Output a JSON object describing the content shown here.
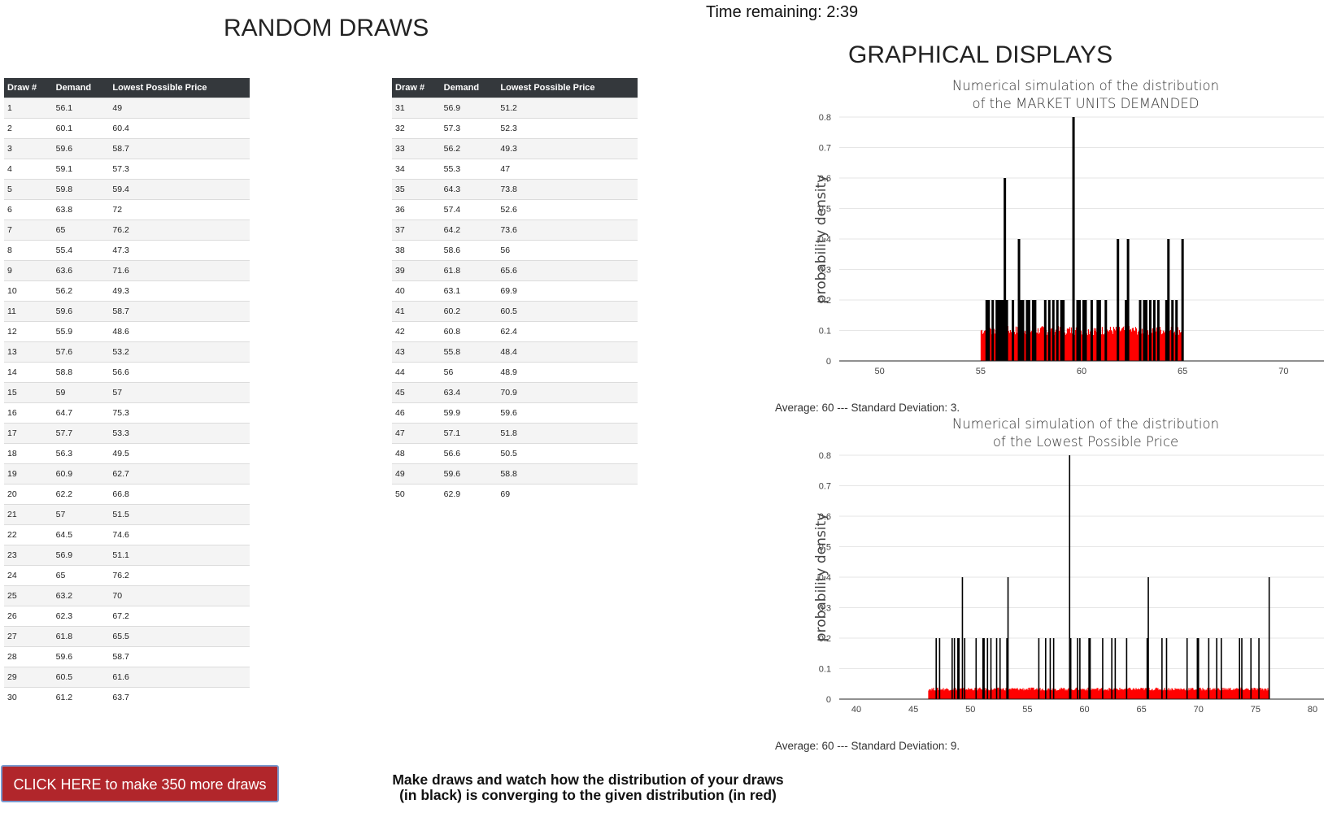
{
  "header": {
    "timer_text": "Time remaining: 2:39",
    "random_title": "RANDOM DRAWS",
    "graph_title": "GRAPHICAL DISPLAYS"
  },
  "table": {
    "columns": [
      "Draw #",
      "Demand",
      "Lowest Possible Price"
    ],
    "rows_left": [
      [
        "1",
        "56.1",
        "49"
      ],
      [
        "2",
        "60.1",
        "60.4"
      ],
      [
        "3",
        "59.6",
        "58.7"
      ],
      [
        "4",
        "59.1",
        "57.3"
      ],
      [
        "5",
        "59.8",
        "59.4"
      ],
      [
        "6",
        "63.8",
        "72"
      ],
      [
        "7",
        "65",
        "76.2"
      ],
      [
        "8",
        "55.4",
        "47.3"
      ],
      [
        "9",
        "63.6",
        "71.6"
      ],
      [
        "10",
        "56.2",
        "49.3"
      ],
      [
        "11",
        "59.6",
        "58.7"
      ],
      [
        "12",
        "55.9",
        "48.6"
      ],
      [
        "13",
        "57.6",
        "53.2"
      ],
      [
        "14",
        "58.8",
        "56.6"
      ],
      [
        "15",
        "59",
        "57"
      ],
      [
        "16",
        "64.7",
        "75.3"
      ],
      [
        "17",
        "57.7",
        "53.3"
      ],
      [
        "18",
        "56.3",
        "49.5"
      ],
      [
        "19",
        "60.9",
        "62.7"
      ],
      [
        "20",
        "62.2",
        "66.8"
      ],
      [
        "21",
        "57",
        "51.5"
      ],
      [
        "22",
        "64.5",
        "74.6"
      ],
      [
        "23",
        "56.9",
        "51.1"
      ],
      [
        "24",
        "65",
        "76.2"
      ],
      [
        "25",
        "63.2",
        "70"
      ],
      [
        "26",
        "62.3",
        "67.2"
      ],
      [
        "27",
        "61.8",
        "65.5"
      ],
      [
        "28",
        "59.6",
        "58.7"
      ],
      [
        "29",
        "60.5",
        "61.6"
      ],
      [
        "30",
        "61.2",
        "63.7"
      ]
    ],
    "rows_right": [
      [
        "31",
        "56.9",
        "51.2"
      ],
      [
        "32",
        "57.3",
        "52.3"
      ],
      [
        "33",
        "56.2",
        "49.3"
      ],
      [
        "34",
        "55.3",
        "47"
      ],
      [
        "35",
        "64.3",
        "73.8"
      ],
      [
        "36",
        "57.4",
        "52.6"
      ],
      [
        "37",
        "64.2",
        "73.6"
      ],
      [
        "38",
        "58.6",
        "56"
      ],
      [
        "39",
        "61.8",
        "65.6"
      ],
      [
        "40",
        "63.1",
        "69.9"
      ],
      [
        "41",
        "60.2",
        "60.5"
      ],
      [
        "42",
        "60.8",
        "62.4"
      ],
      [
        "43",
        "55.8",
        "48.4"
      ],
      [
        "44",
        "56",
        "48.9"
      ],
      [
        "45",
        "63.4",
        "70.9"
      ],
      [
        "46",
        "59.9",
        "59.6"
      ],
      [
        "47",
        "57.1",
        "51.8"
      ],
      [
        "48",
        "56.6",
        "50.5"
      ],
      [
        "49",
        "59.6",
        "58.8"
      ],
      [
        "50",
        "62.9",
        "69"
      ]
    ]
  },
  "actions": {
    "more_draws_label": "CLICK HERE to make 350 more draws"
  },
  "instructions": {
    "text": "Make draws and watch how the distribution of your draws (in black) is converging to the given distribution (in red)"
  },
  "colors": {
    "header_bg": "#34383c",
    "button_bg": "#b1262b",
    "simulation_red": "#ff0000",
    "draws_black": "#000000"
  },
  "chart_data": [
    {
      "type": "bar",
      "title": "Numerical simulation of the distribution of the MARKET UNITS DEMANDED",
      "title_lines": [
        "Numerical simulation of the distribution",
        "of the MARKET UNITS DEMANDED"
      ],
      "ylabel": "probability density",
      "xlim": [
        48,
        72
      ],
      "ylim": [
        0,
        0.8
      ],
      "xticks": [
        50,
        55,
        60,
        65,
        70
      ],
      "yticks": [
        0,
        0.1,
        0.2,
        0.3,
        0.4,
        0.5,
        0.6,
        0.7,
        0.8
      ],
      "grid": true,
      "series": [
        {
          "color": "#ff0000",
          "kind": "uniform-density",
          "range": [
            55,
            65
          ],
          "density": 0.1
        },
        {
          "color": "#000000",
          "kind": "draws-histogram",
          "x": [
            55.3,
            55.4,
            55.6,
            55.8,
            55.9,
            56,
            56.1,
            56.2,
            56.3,
            56.6,
            56.9,
            57,
            57.1,
            57.3,
            57.4,
            57.6,
            57.7,
            58.2,
            58.4,
            58.6,
            58.8,
            59,
            59.1,
            59.6,
            59.8,
            59.9,
            60.1,
            60.2,
            60.5,
            60.8,
            60.9,
            61.2,
            61.8,
            62.2,
            62.3,
            62.9,
            63.1,
            63.2,
            63.4,
            63.6,
            63.8,
            64.2,
            64.3,
            64.5,
            64.7,
            65
          ],
          "y": [
            0.2,
            0.2,
            0.2,
            0.2,
            0.2,
            0.2,
            0.2,
            0.6,
            0.2,
            0.2,
            0.4,
            0.2,
            0.2,
            0.2,
            0.2,
            0.2,
            0.2,
            0.2,
            0.2,
            0.2,
            0.2,
            0.2,
            0.2,
            0.8,
            0.2,
            0.2,
            0.2,
            0.2,
            0.2,
            0.2,
            0.2,
            0.2,
            0.4,
            0.2,
            0.4,
            0.2,
            0.2,
            0.2,
            0.2,
            0.2,
            0.2,
            0.2,
            0.4,
            0.2,
            0.2,
            0.4
          ]
        }
      ],
      "stats_text": "Average: 60 --- Standard Deviation: 3."
    },
    {
      "type": "bar",
      "title": "Numerical simulation of the distribution of the Lowest Possible Price",
      "title_lines": [
        "Numerical simulation of the distribution",
        "of the Lowest Possible Price"
      ],
      "ylabel": "probability density",
      "xlim": [
        38.5,
        81
      ],
      "ylim": [
        0,
        0.8
      ],
      "xticks": [
        40,
        45,
        50,
        55,
        60,
        65,
        70,
        75,
        80
      ],
      "yticks": [
        0,
        0.1,
        0.2,
        0.3,
        0.4,
        0.5,
        0.6,
        0.7,
        0.8
      ],
      "grid": true,
      "series": [
        {
          "color": "#ff0000",
          "kind": "uniform-density",
          "range": [
            46.3,
            76.2
          ],
          "density": 0.033
        },
        {
          "color": "#000000",
          "kind": "draws-histogram",
          "x": [
            47,
            47.3,
            48.4,
            48.6,
            48.9,
            49,
            49.3,
            49.5,
            50.5,
            51.1,
            51.2,
            51.5,
            51.8,
            52.3,
            52.6,
            53.2,
            53.3,
            56,
            56.6,
            57,
            57.3,
            58.7,
            58.8,
            59.4,
            59.6,
            60.4,
            60.5,
            61.6,
            62.4,
            62.7,
            63.7,
            65.5,
            65.6,
            66.8,
            67.2,
            69,
            69.9,
            70,
            70.9,
            71.6,
            72,
            73.6,
            73.8,
            74.6,
            75.3,
            76.2
          ],
          "y": [
            0.2,
            0.2,
            0.2,
            0.2,
            0.2,
            0.2,
            0.4,
            0.2,
            0.2,
            0.2,
            0.2,
            0.2,
            0.2,
            0.2,
            0.2,
            0.2,
            0.4,
            0.2,
            0.2,
            0.2,
            0.2,
            0.8,
            0.2,
            0.2,
            0.2,
            0.2,
            0.2,
            0.2,
            0.2,
            0.2,
            0.2,
            0.2,
            0.4,
            0.2,
            0.2,
            0.2,
            0.2,
            0.2,
            0.2,
            0.2,
            0.2,
            0.2,
            0.2,
            0.2,
            0.2,
            0.4
          ]
        }
      ],
      "stats_text": "Average: 60 --- Standard Deviation: 9."
    }
  ]
}
